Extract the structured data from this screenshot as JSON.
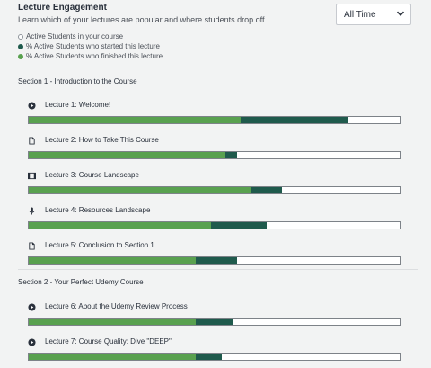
{
  "header": {
    "title": "Lecture Engagement",
    "description": "Learn which of your lectures are popular and where students drop off."
  },
  "filter": {
    "selected": "All Time",
    "icon": "chevron-down-icon"
  },
  "legend": [
    {
      "label": "Active Students in your course",
      "color": "#ffffff"
    },
    {
      "label": "% Active Students who started this lecture",
      "color": "#1f5a4c"
    },
    {
      "label": "% Active Students who finished this lecture",
      "color": "#59a14f"
    }
  ],
  "sections": [
    {
      "title": "Section 1 - Introduction to the Course",
      "lectures": [
        {
          "title": "Lecture 1: Welcome!",
          "icon": "play-icon",
          "started_pct": 86,
          "finished_pct": 57
        },
        {
          "title": "Lecture 2: How to Take This Course",
          "icon": "document-icon",
          "started_pct": 56,
          "finished_pct": 53
        },
        {
          "title": "Lecture 3: Course Landscape",
          "icon": "video-icon",
          "started_pct": 68,
          "finished_pct": 60
        },
        {
          "title": "Lecture 4: Resources Landscape",
          "icon": "microphone-icon",
          "started_pct": 64,
          "finished_pct": 49
        },
        {
          "title": "Lecture 5: Conclusion to Section 1",
          "icon": "document-icon",
          "started_pct": 56,
          "finished_pct": 45
        }
      ]
    },
    {
      "title": "Section 2 - Your Perfect Udemy Course",
      "lectures": [
        {
          "title": "Lecture 6: About the Udemy Review Process",
          "icon": "play-icon",
          "started_pct": 55,
          "finished_pct": 45
        },
        {
          "title": "Lecture 7: Course Quality: Dive \"DEEP\"",
          "icon": "play-icon",
          "started_pct": 52,
          "finished_pct": 45
        }
      ]
    }
  ]
}
